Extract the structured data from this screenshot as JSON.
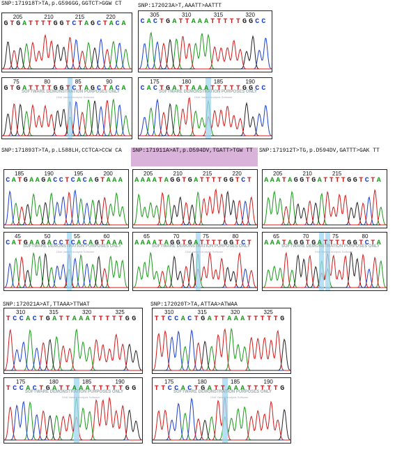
{
  "colors": {
    "A": "#1a9a1a",
    "C": "#1a3fd0",
    "G": "#222222",
    "T": "#d01a1a",
    "highlight": "#9fd6f2",
    "label_highlight": "#d9b3d9"
  },
  "watermark": {
    "line1": "SOFTWARE DEMONSTRATION PURPOSES ONLY",
    "line2": "DNA Variant Analysis Software"
  },
  "labels": [
    {
      "text": "SNP:171918T>TA,p.G596GG,GGTCT>GGW CT",
      "highlighted": false
    },
    {
      "text": "SNP:172023A>T,AAATT>AATTT",
      "highlighted": false
    },
    {
      "text": "SNP:171893T>TA,p.L588LH,CCTCA>CCW CA",
      "highlighted": false
    },
    {
      "text": "SNP:171911A>AT,p.D594DV,TGATT>TGW TT",
      "highlighted": true
    },
    {
      "text": "SNP:171912T>TG,p.D594DV,GATTT>GAK TT",
      "highlighted": false
    },
    {
      "text": "SNP:172021A>AT,TTAAA>TTWAT",
      "highlighted": false
    },
    {
      "text": "SNP:172020T>TA,ATTAA>ATWAA",
      "highlighted": false
    }
  ],
  "panels": [
    {
      "numbers": [
        "205",
        "210",
        "215",
        "220"
      ],
      "sequence": "GTGATTTTGGTCTAGCTACA",
      "watermark": false,
      "highlight": []
    },
    {
      "numbers": [
        "305",
        "310",
        "315",
        "320"
      ],
      "sequence": "CACTGATTAAATTTTTGGCC",
      "watermark": false,
      "highlight": []
    },
    {
      "numbers": [
        "75",
        "80",
        "85",
        "90"
      ],
      "sequence": "GTGATTTTGGTCTAGCTACA",
      "watermark": true,
      "highlight": [
        10
      ]
    },
    {
      "numbers": [
        "175",
        "180",
        "185",
        "190"
      ],
      "sequence": "CACTGATTAAATTTTTGGCC",
      "watermark": true,
      "highlight": [
        10
      ]
    },
    {
      "numbers": [
        "185",
        "190",
        "195",
        "200"
      ],
      "sequence": "CATGAAGACCTCACAGTAAA",
      "watermark": false,
      "highlight": []
    },
    {
      "numbers": [
        "205",
        "210",
        "215",
        "220"
      ],
      "sequence": "AAAATAGGTGATTTTGGTCT",
      "watermark": false,
      "highlight": []
    },
    {
      "numbers": [
        "205",
        "210",
        "215"
      ],
      "sequence": "AAATAGGTGATTTTGGTCTA",
      "watermark": false,
      "highlight": []
    },
    {
      "numbers": [
        "45",
        "50",
        "55",
        "60"
      ],
      "sequence": "CATGAAGACCTCACAGTAAA",
      "watermark": true,
      "highlight": [
        10
      ]
    },
    {
      "numbers": [
        "65",
        "70",
        "75",
        "80"
      ],
      "sequence": "AAAATAGGTGATTTTGGTCT",
      "watermark": true,
      "highlight": [
        10
      ]
    },
    {
      "numbers": [
        "65",
        "70",
        "75",
        "80"
      ],
      "sequence": "AAATAGGTGATTTTGGTCTA",
      "watermark": true,
      "highlight": [
        9,
        10
      ]
    },
    {
      "numbers": [
        "310",
        "315",
        "320",
        "325"
      ],
      "sequence": "TCCACTGATTAAATTTTTGG",
      "watermark": false,
      "highlight": []
    },
    {
      "numbers": [
        "310",
        "315",
        "320",
        "325"
      ],
      "sequence": "TTCCACTGATTAAATTTTTG",
      "watermark": false,
      "highlight": []
    },
    {
      "numbers": [
        "175",
        "180",
        "185",
        "190"
      ],
      "sequence": "TCCACTGATTAAATTTTTGG",
      "watermark": true,
      "highlight": [
        10
      ]
    },
    {
      "numbers": [
        "175",
        "180",
        "185",
        "190"
      ],
      "sequence": "TTCCACTGATTAAATTTTTG",
      "watermark": true,
      "highlight": [
        10
      ]
    }
  ]
}
